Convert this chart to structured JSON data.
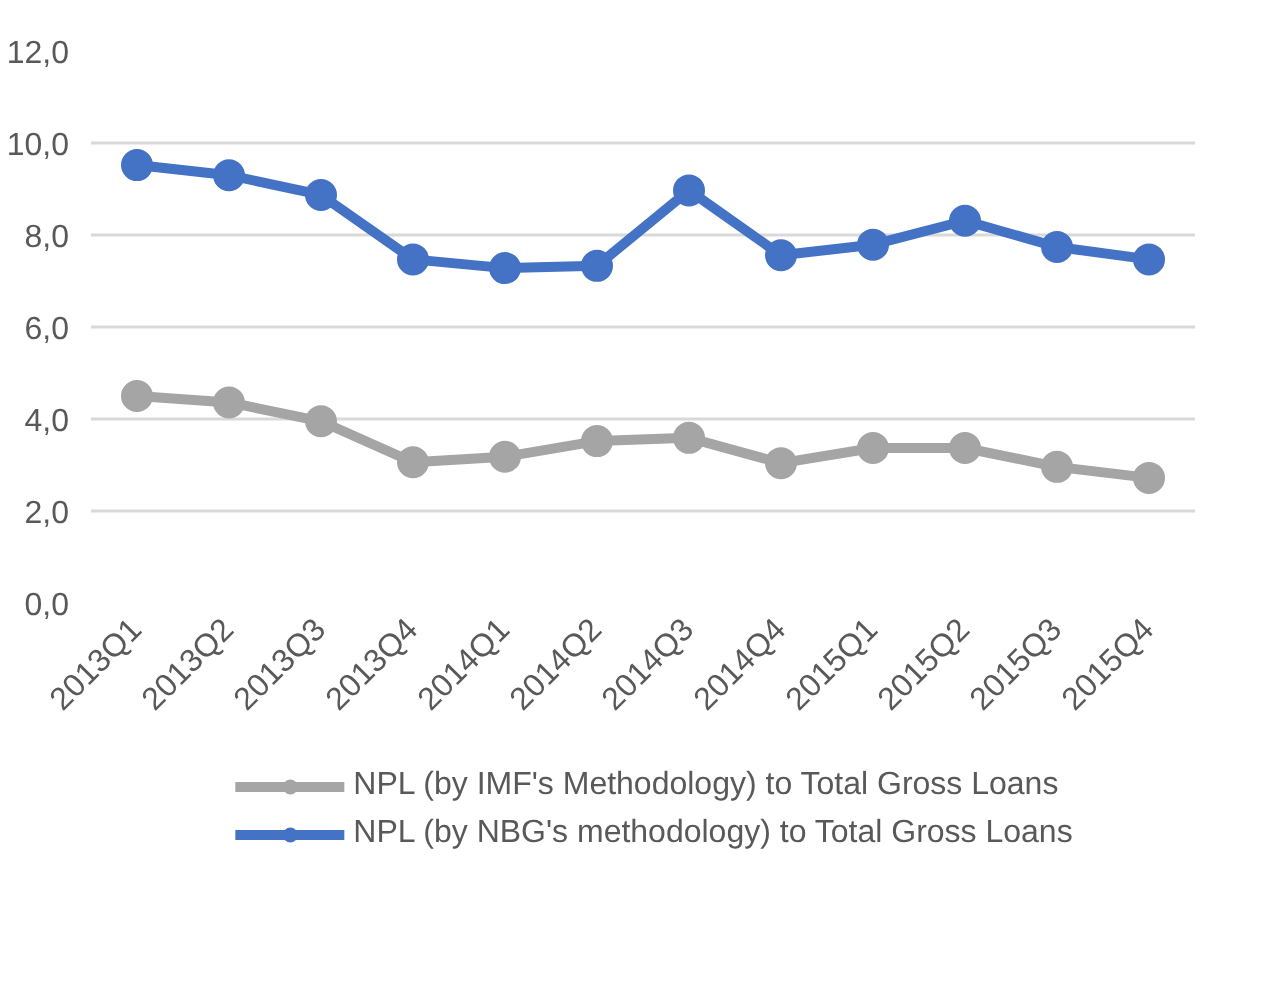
{
  "chart_data": {
    "type": "line",
    "categories": [
      "2013Q1",
      "2013Q2",
      "2013Q3",
      "2013Q4",
      "2014Q1",
      "2014Q2",
      "2014Q3",
      "2014Q4",
      "2015Q1",
      "2015Q2",
      "2015Q3",
      "2015Q4"
    ],
    "series": [
      {
        "name": "NPL (by IMF's Methodology) to Total Gross Loans",
        "color": "#a5a5a5",
        "values": [
          4.5,
          4.36,
          3.95,
          3.06,
          3.18,
          3.52,
          3.59,
          3.04,
          3.37,
          3.37,
          2.96,
          2.72
        ]
      },
      {
        "name": "NPL (by NBG's methodology) to Total Gross Loans",
        "color": "#4472c4",
        "values": [
          9.52,
          9.3,
          8.87,
          7.47,
          7.28,
          7.33,
          8.97,
          7.56,
          7.79,
          8.31,
          7.74,
          7.47
        ]
      }
    ],
    "ylim": [
      0,
      12
    ],
    "yticks": [
      {
        "value": 0,
        "label": "0,0"
      },
      {
        "value": 2,
        "label": "2,0"
      },
      {
        "value": 4,
        "label": "4,0"
      },
      {
        "value": 6,
        "label": "6,0"
      },
      {
        "value": 8,
        "label": "8,0"
      },
      {
        "value": 10,
        "label": "10,0"
      },
      {
        "value": 12,
        "label": "12,0"
      }
    ],
    "grid": "y",
    "legend": "bottom",
    "marker": "circle",
    "line_style": "solid"
  }
}
